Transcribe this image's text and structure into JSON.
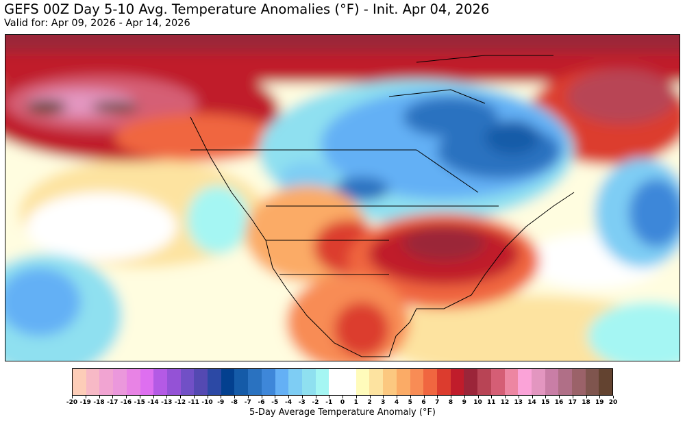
{
  "header": {
    "title": "GEFS 00Z Day 5-10 Avg. Temperature Anomalies (°F) - Init. Apr 04, 2026",
    "subtitle": "Valid for: Apr 09, 2026 - Apr 14, 2026"
  },
  "colorbar": {
    "label": "5-Day Average Temperature Anomaly (°F)",
    "ticks": [
      "-20",
      "-19",
      "-18",
      "-17",
      "-16",
      "-15",
      "-14",
      "-13",
      "-12",
      "-11",
      "-10",
      "-9",
      "-8",
      "-7",
      "-6",
      "-5",
      "-4",
      "-3",
      "-2",
      "-1",
      "0",
      "1",
      "2",
      "3",
      "4",
      "5",
      "6",
      "7",
      "8",
      "9",
      "10",
      "11",
      "12",
      "13",
      "14",
      "15",
      "16",
      "17",
      "18",
      "19",
      "20"
    ],
    "colors": [
      "#fdcdb8",
      "#f7b9c6",
      "#f1a4d2",
      "#eb98dc",
      "#e883e5",
      "#de6ff0",
      "#b45ae5",
      "#9452d6",
      "#7150c6",
      "#5449b2",
      "#2c49a5",
      "#03408f",
      "#155ba8",
      "#2a72c0",
      "#3e87d9",
      "#64b0f5",
      "#7ecdf4",
      "#8fe0f0",
      "#a5f6f3",
      "#ffffff",
      "#ffffff",
      "#fffbbb",
      "#fde3a0",
      "#fcc880",
      "#fbab66",
      "#f88c55",
      "#f06640",
      "#dc3c2e",
      "#c01c2b",
      "#9b2539",
      "#b84455",
      "#d55e75",
      "#ed86a2",
      "#fba3d8",
      "#e396c0",
      "#c97ea6",
      "#b06f87",
      "#9b6269",
      "#7f554e",
      "#634330"
    ]
  }
}
